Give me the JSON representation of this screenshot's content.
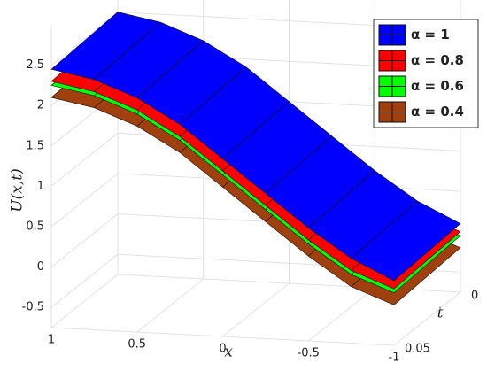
{
  "chart_data": {
    "type": "surface3d",
    "zlabel": "U(x,t)",
    "xlabel": "x",
    "tlabel": "t",
    "x": [
      1,
      0.75,
      0.5,
      0.25,
      0,
      -0.25,
      -0.5,
      -0.75,
      -1
    ],
    "t": [
      0,
      0.05
    ],
    "xlim": [
      -1,
      1
    ],
    "tlim": [
      0,
      0.05
    ],
    "zlim": [
      -0.75,
      3
    ],
    "xticks": [
      1,
      0.5,
      0,
      -0.5,
      -1
    ],
    "tticks": [
      0,
      0.05
    ],
    "zticks": [
      -0.5,
      0,
      0.5,
      1,
      1.5,
      2,
      2.5
    ],
    "grid": true,
    "legend": "upper right",
    "series": [
      {
        "name": "α = 1",
        "color": "#0000ff",
        "values": [
          [
            2.5,
            2.4,
            2.2,
            1.9,
            1.5,
            1.1,
            0.7,
            0.35,
            0.1
          ],
          [
            2.45,
            2.35,
            2.15,
            1.85,
            1.45,
            1.05,
            0.65,
            0.3,
            0.05
          ]
        ]
      },
      {
        "name": "α = 0.8",
        "color": "#ff0000",
        "values": [
          [
            2.35,
            2.25,
            2.05,
            1.75,
            1.35,
            0.95,
            0.55,
            0.2,
            0
          ],
          [
            2.3,
            2.2,
            2.0,
            1.7,
            1.3,
            0.9,
            0.5,
            0.15,
            -0.05
          ]
        ]
      },
      {
        "name": "α = 0.6",
        "color": "#00ff00",
        "values": [
          [
            2.3,
            2.2,
            2.0,
            1.7,
            1.3,
            0.9,
            0.5,
            0.15,
            -0.05
          ],
          [
            2.25,
            2.15,
            1.95,
            1.65,
            1.25,
            0.85,
            0.45,
            0.1,
            -0.1
          ]
        ]
      },
      {
        "name": "α = 0.4",
        "color": "#a0400f",
        "values": [
          [
            2.15,
            2.05,
            1.85,
            1.55,
            1.15,
            0.75,
            0.35,
            0,
            -0.2
          ],
          [
            2.1,
            2.0,
            1.8,
            1.5,
            1.1,
            0.7,
            0.3,
            -0.05,
            -0.25
          ]
        ]
      }
    ]
  }
}
